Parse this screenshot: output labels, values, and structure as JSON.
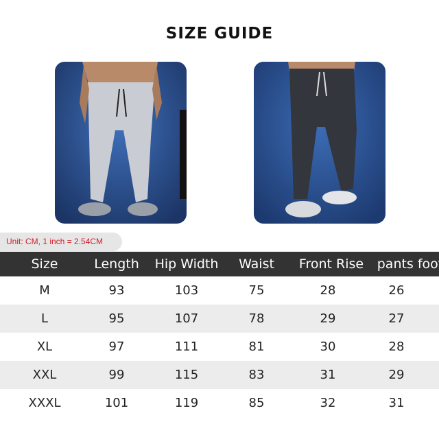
{
  "title": "SIZE GUIDE",
  "photos": [
    {
      "icon": "light-gray-jogger-pants-photo"
    },
    {
      "icon": "dark-gray-jogger-pants-photo"
    }
  ],
  "unit_note": "Unit: CM, 1 inch = 2.54CM",
  "table": {
    "headers": [
      "Size",
      "Length",
      "Hip Width",
      "Waist",
      "Front Rise",
      "pants foot"
    ],
    "rows": [
      [
        "M",
        "93",
        "103",
        "75",
        "28",
        "26"
      ],
      [
        "L",
        "95",
        "107",
        "78",
        "29",
        "27"
      ],
      [
        "XL",
        "97",
        "111",
        "81",
        "30",
        "28"
      ],
      [
        "XXL",
        "99",
        "115",
        "83",
        "31",
        "29"
      ],
      [
        "XXXL",
        "101",
        "119",
        "85",
        "32",
        "31"
      ]
    ]
  },
  "colors": {
    "header_bg": "#333333",
    "alt_row_bg": "#ececec",
    "unit_text": "#d3202a",
    "photo_bg": "#2a4f8f"
  }
}
